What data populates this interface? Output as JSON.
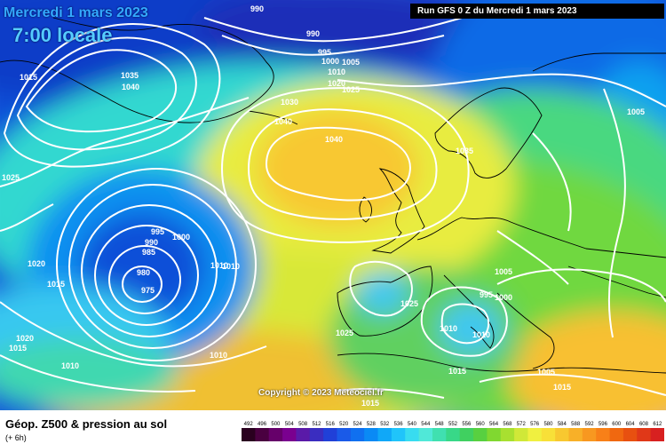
{
  "header": {
    "date": "Mercredi 1 mars 2023",
    "local_time": "7:00 locale",
    "run": "Run GFS 0 Z du Mercredi 1 mars 2023"
  },
  "copyright": "Copyright © 2023 Meteociel.fr",
  "legend": {
    "title": "Géop. Z500 & pression au sol",
    "subtitle": "(+ 6h)",
    "scale_values": [
      "492",
      "496",
      "500",
      "504",
      "508",
      "512",
      "516",
      "520",
      "524",
      "528",
      "532",
      "536",
      "540",
      "544",
      "548",
      "552",
      "556",
      "560",
      "564",
      "568",
      "572",
      "576",
      "580",
      "584",
      "588",
      "592",
      "596",
      "600",
      "604",
      "608",
      "612"
    ],
    "scale_colors": [
      "#2a001f",
      "#4a0040",
      "#66006a",
      "#7a008f",
      "#5a1aa8",
      "#3a2dc0",
      "#2040d8",
      "#1a5ae8",
      "#1070f0",
      "#0a8af5",
      "#10a8f8",
      "#20c4fa",
      "#38dcf0",
      "#50e8d8",
      "#40e0b0",
      "#38d888",
      "#40d060",
      "#58d040",
      "#80d830",
      "#a8e030",
      "#d0e838",
      "#f0f040",
      "#f8e038",
      "#f8c830",
      "#f8b028",
      "#f89820",
      "#f88018",
      "#f06810",
      "#e85010",
      "#e03818",
      "#d82020"
    ]
  },
  "pressure_labels": [
    "990",
    "990",
    "995",
    "1000",
    "1005",
    "1010",
    "1020",
    "1025",
    "1015",
    "1035",
    "1040",
    "1030",
    "1040",
    "1040",
    "1035",
    "1005",
    "1025",
    "995",
    "990",
    "985",
    "1000",
    "980",
    "975",
    "1010",
    "1010",
    "1020",
    "1015",
    "1025",
    "1005",
    "1000",
    "995",
    "1010",
    "1010",
    "1025",
    "1010",
    "1020",
    "1015",
    "1010",
    "1005",
    "1015",
    "1015",
    "1015"
  ]
}
